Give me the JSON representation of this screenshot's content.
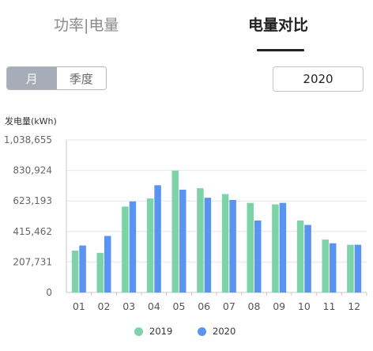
{
  "tabs": {
    "power_label": "功率|电量",
    "compare_label": "电量对比"
  },
  "period": {
    "month_label": "月",
    "quarter_label": "季度",
    "selected": "月"
  },
  "year_select": {
    "value": "2020"
  },
  "colors": {
    "series_2019": "#7dd3a8",
    "series_2020": "#5b93f0",
    "grid": "#e6e6e6",
    "axis": "#c8c8c8"
  },
  "chart_data": {
    "type": "bar",
    "ylabel": "发电量(kWh)",
    "xlabel": "",
    "ylim": [
      0,
      1038655
    ],
    "yticks": [
      0,
      207731,
      415462,
      623193,
      830924,
      1038655
    ],
    "ytick_labels": [
      "0",
      "207,731",
      "415,462",
      "623,193",
      "830,924",
      "1,038,655"
    ],
    "categories": [
      "01",
      "02",
      "03",
      "04",
      "05",
      "06",
      "07",
      "08",
      "09",
      "10",
      "11",
      "12"
    ],
    "series": [
      {
        "name": "2019",
        "values": [
          285000,
          270000,
          585000,
          640000,
          830000,
          710000,
          670000,
          610000,
          600000,
          490000,
          360000,
          325000
        ]
      },
      {
        "name": "2020",
        "values": [
          320000,
          385000,
          620000,
          730000,
          700000,
          645000,
          630000,
          490000,
          610000,
          460000,
          335000,
          325000
        ]
      }
    ],
    "grid": true,
    "legend_position": "bottom"
  }
}
